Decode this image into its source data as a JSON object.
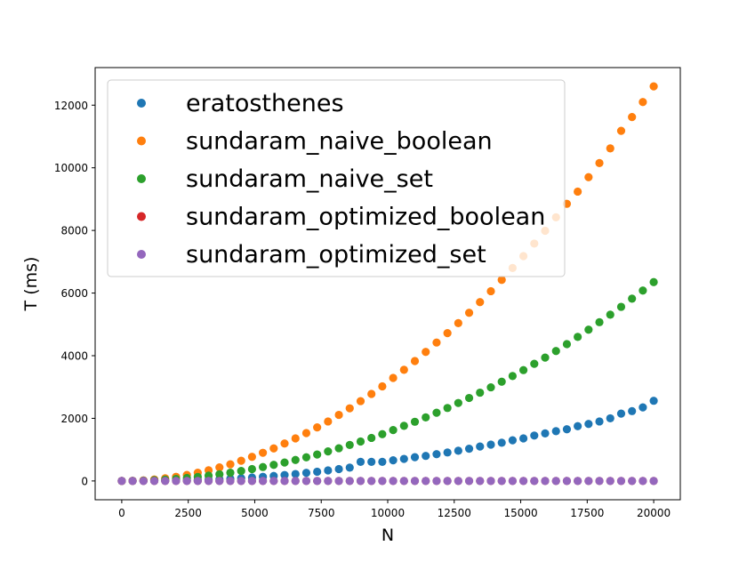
{
  "chart_data": {
    "type": "scatter",
    "title": "",
    "xlabel": "N",
    "ylabel": "T (ms)",
    "xlim": [
      -1000,
      21000
    ],
    "ylim": [
      -600,
      13200
    ],
    "xticks": [
      0,
      2500,
      5000,
      7500,
      10000,
      12500,
      15000,
      17500,
      20000
    ],
    "yticks": [
      0,
      2000,
      4000,
      6000,
      8000,
      10000,
      12000
    ],
    "grid": false,
    "legend_position": "upper-left",
    "x": [
      0,
      408,
      816,
      1224,
      1633,
      2041,
      2449,
      2857,
      3265,
      3673,
      4082,
      4490,
      4898,
      5306,
      5714,
      6122,
      6531,
      6939,
      7347,
      7755,
      8163,
      8571,
      8980,
      9388,
      9796,
      10204,
      10612,
      11020,
      11429,
      11837,
      12245,
      12653,
      13061,
      13469,
      13878,
      14286,
      14694,
      15102,
      15510,
      15918,
      16327,
      16735,
      17143,
      17551,
      17959,
      18367,
      18776,
      19184,
      19592,
      20000
    ],
    "series": [
      {
        "name": "eratosthenes",
        "color": "#1f77b4",
        "values": [
          0,
          0,
          2,
          5,
          10,
          16,
          24,
          33,
          44,
          57,
          72,
          90,
          110,
          133,
          160,
          190,
          222,
          258,
          296,
          338,
          380,
          425,
          610,
          610,
          610,
          660,
          705,
          760,
          800,
          855,
          910,
          965,
          1030,
          1100,
          1160,
          1220,
          1300,
          1360,
          1450,
          1520,
          1590,
          1650,
          1750,
          1820,
          1900,
          2000,
          2150,
          2230,
          2350,
          2560
        ]
      },
      {
        "name": "sundaram_naive_boolean",
        "color": "#ff7f0e",
        "values": [
          0,
          5,
          20,
          48,
          85,
          133,
          192,
          262,
          342,
          432,
          532,
          645,
          770,
          900,
          1040,
          1195,
          1360,
          1530,
          1710,
          1900,
          2110,
          2320,
          2550,
          2780,
          3020,
          3290,
          3550,
          3830,
          4120,
          4420,
          4720,
          5040,
          5370,
          5710,
          6060,
          6420,
          6800,
          7180,
          7580,
          7990,
          8420,
          8850,
          9240,
          9700,
          10150,
          10620,
          11180,
          11620,
          12100,
          12600
        ]
      },
      {
        "name": "sundaram_naive_set",
        "color": "#2ca02c",
        "values": [
          0,
          3,
          10,
          24,
          42,
          66,
          95,
          130,
          170,
          215,
          265,
          320,
          380,
          445,
          515,
          590,
          670,
          755,
          845,
          945,
          1045,
          1150,
          1260,
          1375,
          1495,
          1625,
          1760,
          1890,
          2030,
          2180,
          2330,
          2490,
          2650,
          2820,
          2990,
          3170,
          3350,
          3540,
          3740,
          3940,
          4150,
          4370,
          4600,
          4830,
          5070,
          5310,
          5560,
          5820,
          6080,
          6350
        ]
      },
      {
        "name": "sundaram_optimized_boolean",
        "color": "#d62728",
        "values": [
          0,
          0,
          0,
          0,
          0,
          0,
          0,
          0,
          0,
          0,
          0,
          0,
          0,
          0,
          0,
          0,
          0,
          0,
          0,
          0,
          0,
          0,
          0,
          0,
          0,
          0,
          0,
          0,
          0,
          0,
          0,
          0,
          0,
          0,
          0,
          0,
          0,
          0,
          0,
          0,
          0,
          0,
          0,
          0,
          0,
          0,
          0,
          0,
          0,
          0
        ]
      },
      {
        "name": "sundaram_optimized_set",
        "color": "#9467bd",
        "values": [
          0,
          0,
          0,
          0,
          0,
          0,
          0,
          0,
          0,
          0,
          0,
          0,
          0,
          0,
          0,
          0,
          0,
          0,
          0,
          0,
          0,
          0,
          0,
          0,
          0,
          0,
          0,
          0,
          0,
          0,
          0,
          0,
          0,
          0,
          0,
          0,
          0,
          0,
          0,
          0,
          0,
          0,
          0,
          0,
          0,
          0,
          0,
          0,
          0,
          0
        ]
      }
    ]
  }
}
